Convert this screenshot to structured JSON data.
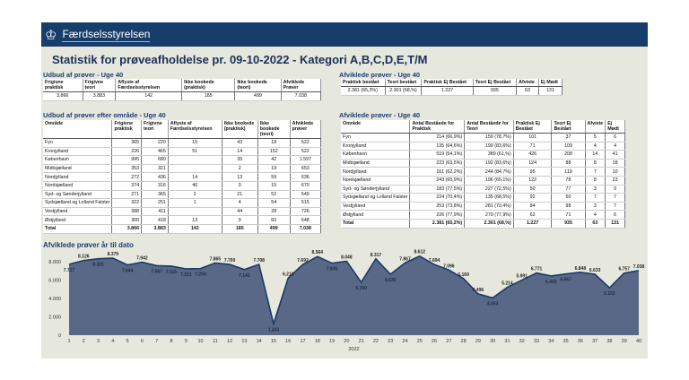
{
  "header": {
    "brand": "Færdselsstyrelsen",
    "logo_icon": "crown-icon"
  },
  "title": "Statistik for prøveafholdelse pr. 09-10-2022 - Kategori A,B,C,D,E,T/M",
  "supply_week": {
    "heading": "Udbud af prøver - Uge 40",
    "columns": [
      "Frigivne praktisk",
      "Frigivne teori",
      "Aflyste af Færdselsstyrelsen",
      "Ikke bookede (praktisk)",
      "Ikke bookede (teori)",
      "Afviklede Prøver"
    ],
    "row": [
      "3.866",
      "3.883",
      "142",
      "185",
      "499",
      "7.038"
    ]
  },
  "completed_week": {
    "heading": "Afviklede prøver - Uge 40",
    "columns": [
      "Praktisk bestået",
      "Teori bestået",
      "Praktisk Ej Bestået",
      "Teori Ej Bestået",
      "Afviste",
      "Ej Mødt"
    ],
    "row": [
      "2.381 (65,2%)",
      "2.301 (68,%)",
      "1.227",
      "935",
      "63",
      "131"
    ]
  },
  "supply_area": {
    "heading": "Udbud af prøver efter område - Uge 40",
    "columns": [
      "Område",
      "Frigivne praktisk",
      "Frigivne teori",
      "Aflyste af Færdselsstyrelsen",
      "Ikke bookede (praktisk)",
      "Ikke bookede (teori)",
      "Afviklede prøver"
    ],
    "rows": [
      [
        "Fyn",
        "365",
        "220",
        "15",
        "43",
        "18",
        "522"
      ],
      [
        "Kronjylland",
        "226",
        "465",
        "51",
        "14",
        "152",
        "522"
      ],
      [
        "København",
        "995",
        "680",
        "",
        "35",
        "42",
        "1.597"
      ],
      [
        "Midtsjælland",
        "353",
        "321",
        "",
        "2",
        "19",
        "653"
      ],
      [
        "Nordjylland",
        "272",
        "436",
        "14",
        "13",
        "59",
        "636"
      ],
      [
        "Nordsjælland",
        "374",
        "316",
        "46",
        "0",
        "15",
        "670"
      ],
      [
        "Syd- og Sønderjylland",
        "271",
        "365",
        "2",
        "21",
        "52",
        "549"
      ],
      [
        "Sydsjælland og Lolland Falster",
        "322",
        "251",
        "1",
        "4",
        "54",
        "515"
      ],
      [
        "Vestjylland",
        "388",
        "411",
        "",
        "44",
        "28",
        "726"
      ],
      [
        "Østjylland",
        "300",
        "418",
        "13",
        "9",
        "60",
        "648"
      ]
    ],
    "total": [
      "Total",
      "3.866",
      "3.883",
      "142",
      "185",
      "499",
      "7.038"
    ]
  },
  "completed_area": {
    "heading": "Afviklede prøver - Uge 40",
    "columns": [
      "Område",
      "Antal Beståede for Praktisk",
      "Antal Beståede for Teori",
      "Praktisk Ej Bestået",
      "Teori Ej Bestået",
      "Afviste",
      "Ej Mødt"
    ],
    "rows": [
      [
        "Fyn",
        "214 (66,9%)",
        "159 (78,7%)",
        "101",
        "37",
        "5",
        "6"
      ],
      [
        "Kronjylland",
        "135 (64,6%)",
        "199 (83,6%)",
        "71",
        "109",
        "4",
        "4"
      ],
      [
        "København",
        "519 (54,1%)",
        "389 (61,%)",
        "426",
        "208",
        "14",
        "41"
      ],
      [
        "Midtsjælland",
        "223 (63,5%)",
        "192 (83,6%)",
        "124",
        "88",
        "8",
        "18"
      ],
      [
        "Nordjylland",
        "161 (62,2%)",
        "244 (84,7%)",
        "95",
        "119",
        "7",
        "10"
      ],
      [
        "Nordsjælland",
        "243 (65,9%)",
        "196 (65,1%)",
        "122",
        "78",
        "8",
        "23"
      ],
      [
        "Syd- og Sønderjylland",
        "183 (77,5%)",
        "227 (72,5%)",
        "50",
        "77",
        "3",
        "9"
      ],
      [
        "Sydsjælland og Lolland Falster",
        "224 (70,4%)",
        "135 (68,5%)",
        "92",
        "50",
        "7",
        "7"
      ],
      [
        "Vestjylland",
        "253 (73,8%)",
        "281 (73,4%)",
        "84",
        "98",
        "3",
        "7"
      ],
      [
        "Østjylland",
        "226 (77,9%)",
        "279 (77,9%)",
        "62",
        "71",
        "4",
        "6"
      ]
    ],
    "total": [
      "Total",
      "2.381 (65,2%)",
      "2.301 (68,%)",
      "1.227",
      "935",
      "63",
      "131"
    ]
  },
  "chart_data": {
    "type": "area",
    "title": "Afviklede prøver år til dato",
    "xlabel": "2022",
    "ylim": [
      0,
      8000
    ],
    "yticks": [
      "0",
      "2.000",
      "4.000",
      "6.000",
      "8.000"
    ],
    "color": "#5a6888",
    "line_color": "#1b3a66",
    "grid": false,
    "x": [
      1,
      2,
      3,
      4,
      5,
      6,
      7,
      8,
      9,
      10,
      11,
      12,
      13,
      14,
      15,
      16,
      17,
      18,
      19,
      20,
      21,
      22,
      23,
      24,
      25,
      26,
      27,
      28,
      29,
      30,
      31,
      32,
      33,
      34,
      35,
      36,
      37,
      38,
      39,
      40
    ],
    "values": [
      7717,
      8126,
      8321,
      8379,
      7644,
      7942,
      7567,
      7515,
      7221,
      7254,
      7865,
      7700,
      7141,
      7708,
      1243,
      6210,
      7692,
      8564,
      7835,
      8048,
      5760,
      8317,
      6630,
      7867,
      8612,
      7694,
      7096,
      6169,
      4496,
      4053,
      5214,
      5991,
      6771,
      6443,
      6667,
      6848,
      6633,
      5152,
      6757,
      7038
    ],
    "labels": [
      "7.717",
      "8.126",
      "8.321",
      "8.379",
      "7.644",
      "7.942",
      "7.567",
      "7.515",
      "7.221",
      "7.254",
      "7.865",
      "7.700",
      "7.141",
      "7.708",
      "1.243",
      "6.210",
      "7.692",
      "8.564",
      "7.835",
      "8.048",
      "5.760",
      "8.317",
      "6.630",
      "7.867",
      "8.612",
      "7.694",
      "7.096",
      "6.169",
      "4.496",
      "4.053",
      "5.214",
      "5.991",
      "6.771",
      "6.443",
      "6.667",
      "6.848",
      "6.633",
      "5.152",
      "6.757",
      "7.038"
    ]
  }
}
